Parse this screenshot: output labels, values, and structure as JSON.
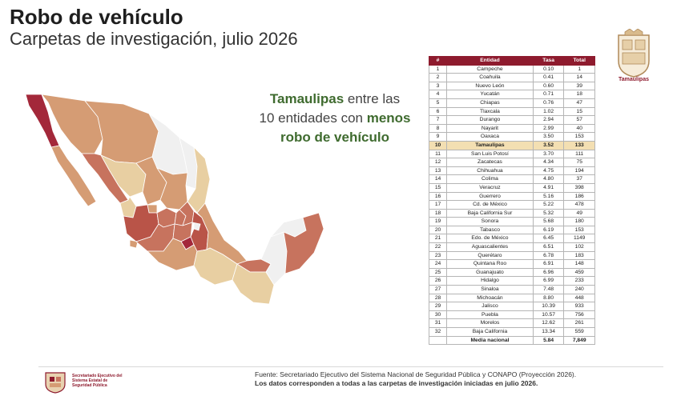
{
  "header": {
    "title": "Robo de vehículo",
    "subtitle": "Carpetas de investigación, julio 2026"
  },
  "headline": {
    "state": "Tamaulipas",
    "part1": " entre las",
    "part2": "10 entidades con ",
    "emph": "menos",
    "part3": "robo de vehículo"
  },
  "logo": {
    "label": "Tamaulipas"
  },
  "table": {
    "headers": [
      "#",
      "Entidad",
      "Tasa",
      "Total"
    ],
    "highlight_rank": 10,
    "rows": [
      [
        "1",
        "Campeche",
        "0.10",
        "1"
      ],
      [
        "2",
        "Coahuila",
        "0.41",
        "14"
      ],
      [
        "3",
        "Nuevo León",
        "0.60",
        "39"
      ],
      [
        "4",
        "Yucatán",
        "0.71",
        "18"
      ],
      [
        "5",
        "Chiapas",
        "0.76",
        "47"
      ],
      [
        "6",
        "Tlaxcala",
        "1.02",
        "15"
      ],
      [
        "7",
        "Durango",
        "2.94",
        "57"
      ],
      [
        "8",
        "Nayarit",
        "2.99",
        "40"
      ],
      [
        "9",
        "Oaxaca",
        "3.50",
        "153"
      ],
      [
        "10",
        "Tamaulipas",
        "3.52",
        "133"
      ],
      [
        "11",
        "San Luis Potosí",
        "3.70",
        "111"
      ],
      [
        "12",
        "Zacatecas",
        "4.34",
        "75"
      ],
      [
        "13",
        "Chihuahua",
        "4.75",
        "194"
      ],
      [
        "14",
        "Colima",
        "4.80",
        "37"
      ],
      [
        "15",
        "Veracruz",
        "4.91",
        "398"
      ],
      [
        "16",
        "Guerrero",
        "5.16",
        "186"
      ],
      [
        "17",
        "Cd. de México",
        "5.22",
        "478"
      ],
      [
        "18",
        "Baja California Sur",
        "5.32",
        "49"
      ],
      [
        "19",
        "Sonora",
        "5.68",
        "180"
      ],
      [
        "20",
        "Tabasco",
        "6.19",
        "153"
      ],
      [
        "21",
        "Edo. de México",
        "6.45",
        "1149"
      ],
      [
        "22",
        "Aguascalientes",
        "6.51",
        "102"
      ],
      [
        "23",
        "Querétaro",
        "6.78",
        "183"
      ],
      [
        "24",
        "Quintana Roo",
        "6.91",
        "148"
      ],
      [
        "25",
        "Guanajuato",
        "6.96",
        "459"
      ],
      [
        "26",
        "Hidalgo",
        "6.99",
        "233"
      ],
      [
        "27",
        "Sinaloa",
        "7.48",
        "240"
      ],
      [
        "28",
        "Michoacán",
        "8.80",
        "448"
      ],
      [
        "29",
        "Jalisco",
        "10.39",
        "933"
      ],
      [
        "30",
        "Puebla",
        "10.57",
        "756"
      ],
      [
        "31",
        "Morelos",
        "12.62",
        "261"
      ],
      [
        "32",
        "Baja California",
        "13.34",
        "559"
      ]
    ],
    "national": {
      "label": "Media nacional",
      "rate": "5.84",
      "total": "7,849"
    }
  },
  "map": {
    "colors": {
      "lowest": "#f0f0f0",
      "low": "#e8cfa2",
      "mid": "#d59c74",
      "high": "#c7735e",
      "higher": "#b95448",
      "highest": "#a3283a"
    },
    "regions": [
      {
        "name": "Baja California",
        "tier": "highest"
      },
      {
        "name": "Baja California Sur",
        "tier": "mid"
      },
      {
        "name": "Sonora",
        "tier": "mid"
      },
      {
        "name": "Chihuahua",
        "tier": "mid"
      },
      {
        "name": "Coahuila",
        "tier": "lowest"
      },
      {
        "name": "Nuevo León",
        "tier": "lowest"
      },
      {
        "name": "Tamaulipas",
        "tier": "low"
      },
      {
        "name": "Sinaloa",
        "tier": "high"
      },
      {
        "name": "Durango",
        "tier": "low"
      },
      {
        "name": "Zacatecas",
        "tier": "mid"
      },
      {
        "name": "San Luis Potosí",
        "tier": "mid"
      },
      {
        "name": "Nayarit",
        "tier": "low"
      },
      {
        "name": "Jalisco",
        "tier": "higher"
      },
      {
        "name": "Michoacán",
        "tier": "high"
      },
      {
        "name": "Guerrero",
        "tier": "mid"
      },
      {
        "name": "Oaxaca",
        "tier": "low"
      },
      {
        "name": "Chiapas",
        "tier": "low"
      },
      {
        "name": "Veracruz",
        "tier": "mid"
      },
      {
        "name": "Tabasco",
        "tier": "high"
      },
      {
        "name": "Campeche",
        "tier": "lowest"
      },
      {
        "name": "Yucatán",
        "tier": "lowest"
      },
      {
        "name": "Quintana Roo",
        "tier": "high"
      },
      {
        "name": "Puebla",
        "tier": "higher"
      },
      {
        "name": "Morelos",
        "tier": "highest"
      },
      {
        "name": "Estado de México",
        "tier": "high"
      },
      {
        "name": "Guanajuato",
        "tier": "high"
      },
      {
        "name": "Querétaro",
        "tier": "high"
      },
      {
        "name": "Hidalgo",
        "tier": "high"
      },
      {
        "name": "Aguascalientes",
        "tier": "mid"
      },
      {
        "name": "Colima",
        "tier": "mid"
      },
      {
        "name": "Tlaxcala",
        "tier": "lowest"
      }
    ]
  },
  "footer": {
    "org": "Secretariado Ejecutivo del Sistema Estatal de Seguridad Pública",
    "source": "Fuente: Secretariado Ejecutivo del Sistema Nacional de Seguridad Pública y CONAPO (Proyección 2026).",
    "note": "Los datos corresponden a todas a las carpetas de investigación iniciadas en julio 2026."
  }
}
